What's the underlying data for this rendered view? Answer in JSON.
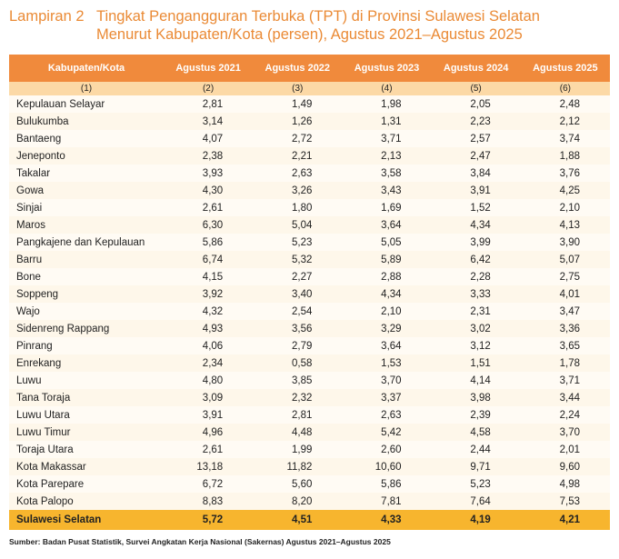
{
  "title": {
    "label": "Lampiran 2",
    "line1": "Tingkat Pengangguran Terbuka (TPT) di Provinsi Sulawesi Selatan",
    "line2": "Menurut Kabupaten/Kota (persen), Agustus 2021–Agustus 2025"
  },
  "table": {
    "headers": [
      "Kabupaten/Kota",
      "Agustus 2021",
      "Agustus 2022",
      "Agustus 2023",
      "Agustus 2024",
      "Agustus 2025"
    ],
    "col_numbers": [
      "(1)",
      "(2)",
      "(3)",
      "(4)",
      "(5)",
      "(6)"
    ],
    "rows": [
      [
        "Kepulauan Selayar",
        "2,81",
        "1,49",
        "1,98",
        "2,05",
        "2,48"
      ],
      [
        "Bulukumba",
        "3,14",
        "1,26",
        "1,31",
        "2,23",
        "2,12"
      ],
      [
        "Bantaeng",
        "4,07",
        "2,72",
        "3,71",
        "2,57",
        "3,74"
      ],
      [
        "Jeneponto",
        "2,38",
        "2,21",
        "2,13",
        "2,47",
        "1,88"
      ],
      [
        "Takalar",
        "3,93",
        "2,63",
        "3,58",
        "3,84",
        "3,76"
      ],
      [
        "Gowa",
        "4,30",
        "3,26",
        "3,43",
        "3,91",
        "4,25"
      ],
      [
        "Sinjai",
        "2,61",
        "1,80",
        "1,69",
        "1,52",
        "2,10"
      ],
      [
        "Maros",
        "6,30",
        "5,04",
        "3,64",
        "4,34",
        "4,13"
      ],
      [
        "Pangkajene dan Kepulauan",
        "5,86",
        "5,23",
        "5,05",
        "3,99",
        "3,90"
      ],
      [
        "Barru",
        "6,74",
        "5,32",
        "5,89",
        "6,42",
        "5,07"
      ],
      [
        "Bone",
        "4,15",
        "2,27",
        "2,88",
        "2,28",
        "2,75"
      ],
      [
        "Soppeng",
        "3,92",
        "3,40",
        "4,34",
        "3,33",
        "4,01"
      ],
      [
        "Wajo",
        "4,32",
        "2,54",
        "2,10",
        "2,31",
        "3,47"
      ],
      [
        "Sidenreng Rappang",
        "4,93",
        "3,56",
        "3,29",
        "3,02",
        "3,36"
      ],
      [
        "Pinrang",
        "4,06",
        "2,79",
        "3,64",
        "3,12",
        "3,65"
      ],
      [
        "Enrekang",
        "2,34",
        "0,58",
        "1,53",
        "1,51",
        "1,78"
      ],
      [
        "Luwu",
        "4,80",
        "3,85",
        "3,70",
        "4,14",
        "3,71"
      ],
      [
        "Tana Toraja",
        "3,09",
        "2,32",
        "3,37",
        "3,98",
        "3,44"
      ],
      [
        "Luwu Utara",
        "3,91",
        "2,81",
        "2,63",
        "2,39",
        "2,24"
      ],
      [
        "Luwu Timur",
        "4,96",
        "4,48",
        "5,42",
        "4,58",
        "3,70"
      ],
      [
        "Toraja Utara",
        "2,61",
        "1,99",
        "2,60",
        "2,44",
        "2,01"
      ],
      [
        "Kota Makassar",
        "13,18",
        "11,82",
        "10,60",
        "9,71",
        "9,60"
      ],
      [
        "Kota Parepare",
        "6,72",
        "5,60",
        "5,86",
        "5,23",
        "4,98"
      ],
      [
        "Kota Palopo",
        "8,83",
        "8,20",
        "7,81",
        "7,64",
        "7,53"
      ]
    ],
    "total": [
      "Sulawesi Selatan",
      "5,72",
      "4,51",
      "4,33",
      "4,19",
      "4,21"
    ]
  },
  "source": "Sumber: Badan Pusat Statistik, Survei Angkatan Kerja Nasional (Sakernas) Agustus 2021–Agustus 2025",
  "colors": {
    "title": "#EA8A35",
    "header": "#F08A3C",
    "subheader": "#FCD9A6",
    "total": "#F7B52E"
  }
}
